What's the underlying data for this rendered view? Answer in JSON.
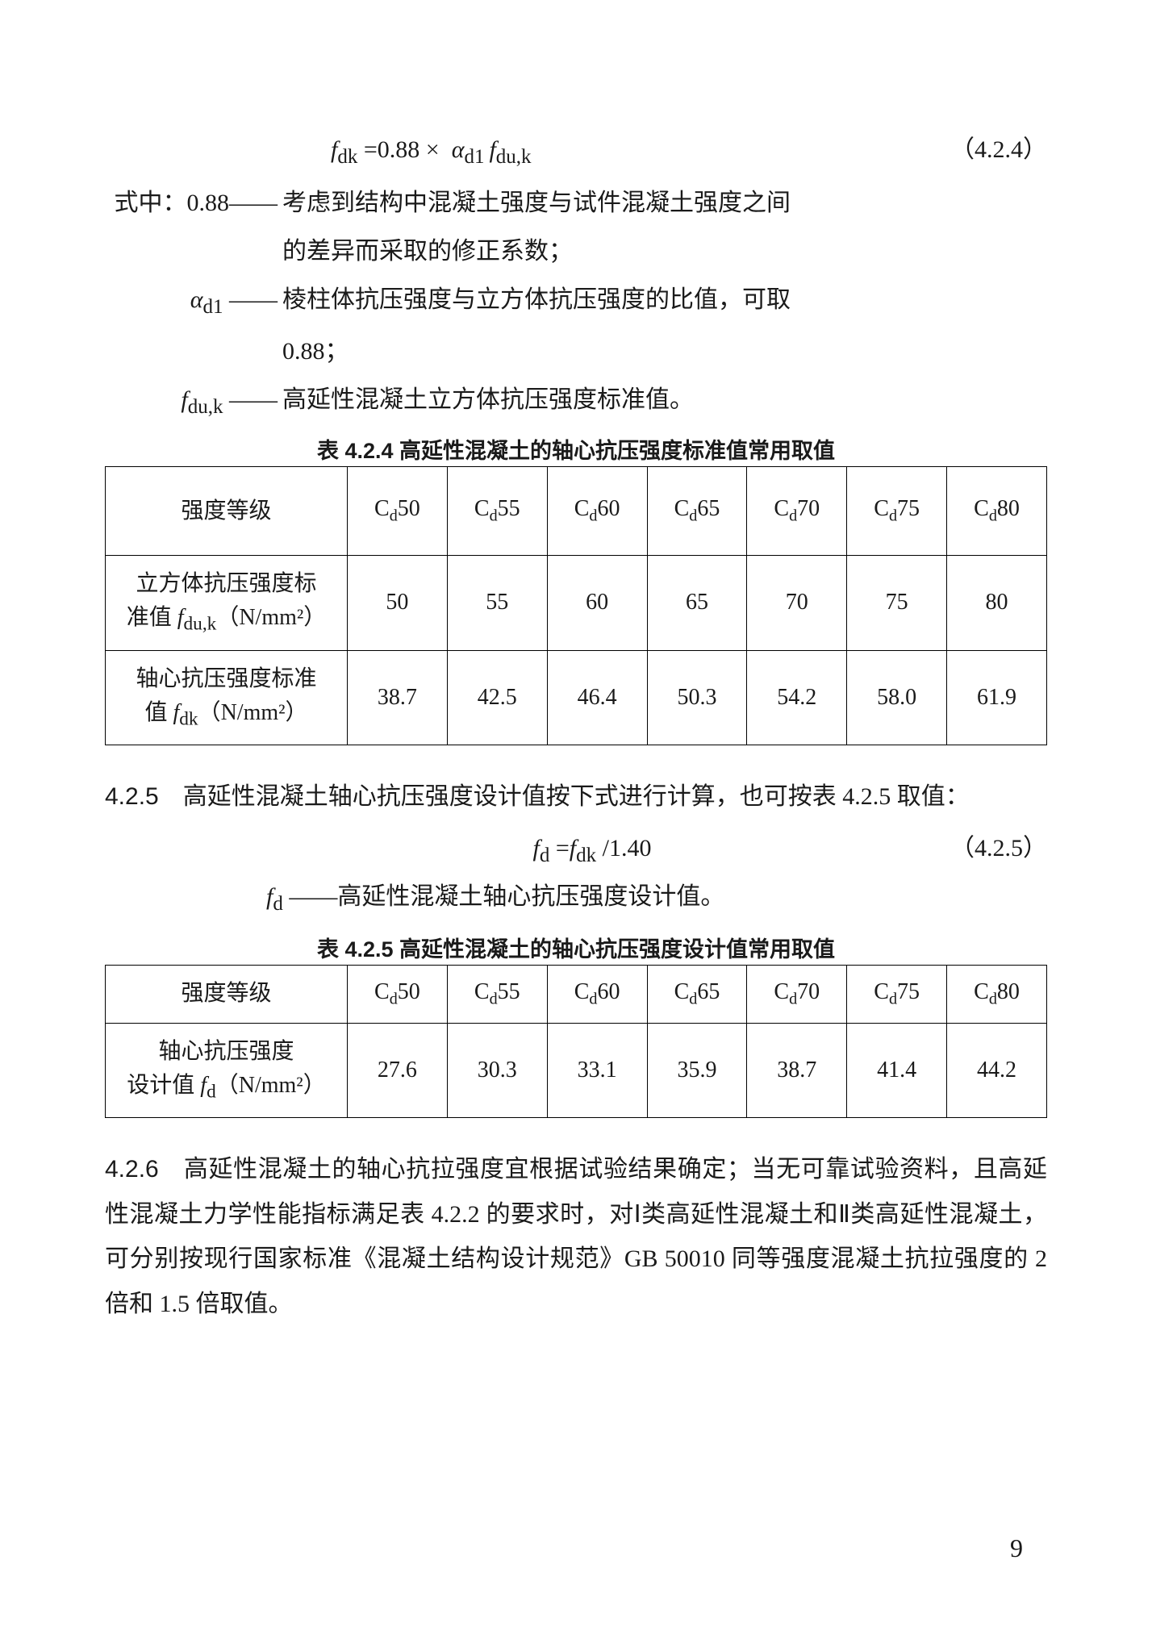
{
  "formula1": {
    "text": "fₐₖ =0.88 ×  αₐ₁ fₐᵤ,ₖ",
    "eqnum": "（4.2.4）"
  },
  "defs1": {
    "intro": "式中：0.88——",
    "d1a": "考虑到结构中混凝土强度与试件混凝土强度之间",
    "d1b": "的差异而采取的修正系数；",
    "d2label": "αₐ₁ ——",
    "d2text": "棱柱体抗压强度与立方体抗压强度的比值，可取",
    "d2cont": "0.88；",
    "d3label": "fₐᵤ,ₖ ——",
    "d3text": "高延性混凝土立方体抗压强度标准值。"
  },
  "table424": {
    "caption": "表 4.2.4    高延性混凝土的轴心抗压强度标准值常用取值",
    "header": "强度等级",
    "grades": [
      "Cd50",
      "Cd55",
      "Cd60",
      "Cd65",
      "Cd70",
      "Cd75",
      "Cd80"
    ],
    "row1_label_a": "立方体抗压强度标",
    "row1_label_b": "准值 fₐᵤ,ₖ （N/mm²）",
    "row1": [
      "50",
      "55",
      "60",
      "65",
      "70",
      "75",
      "80"
    ],
    "row2_label_a": "轴心抗压强度标准",
    "row2_label_b": "值 fₐₖ （N/mm²）",
    "row2": [
      "38.7",
      "42.5",
      "46.4",
      "50.3",
      "54.2",
      "58.0",
      "61.9"
    ]
  },
  "para425": {
    "num": "4.2.5",
    "text": "　高延性混凝土轴心抗压强度设计值按下式进行计算，也可按表 4.2.5 取值："
  },
  "formula2": {
    "text": "fₐ =fₐₖ /1.40",
    "eqnum": "（4.2.5）"
  },
  "defs2": {
    "label": "fₐ ——",
    "text": "高延性混凝土轴心抗压强度设计值。"
  },
  "table425": {
    "caption": "表 4.2.5    高延性混凝土的轴心抗压强度设计值常用取值",
    "header": "强度等级",
    "grades": [
      "Cd50",
      "Cd55",
      "Cd60",
      "Cd65",
      "Cd70",
      "Cd75",
      "Cd80"
    ],
    "row1_label_a": "轴心抗压强度",
    "row1_label_b": "设计值 fₐ （N/mm²）",
    "row1": [
      "27.6",
      "30.3",
      "33.1",
      "35.9",
      "38.7",
      "41.4",
      "44.2"
    ]
  },
  "para426": {
    "num": "4.2.6",
    "text": "　高延性混凝土的轴心抗拉强度宜根据试验结果确定；当无可靠试验资料，且高延性混凝土力学性能指标满足表 4.2.2 的要求时，对Ⅰ类高延性混凝土和Ⅱ类高延性混凝土，可分别按现行国家标准《混凝土结构设计规范》GB  50010 同等强度混凝土抗拉强度的 2 倍和 1.5 倍取值。"
  },
  "pageNumber": "9"
}
